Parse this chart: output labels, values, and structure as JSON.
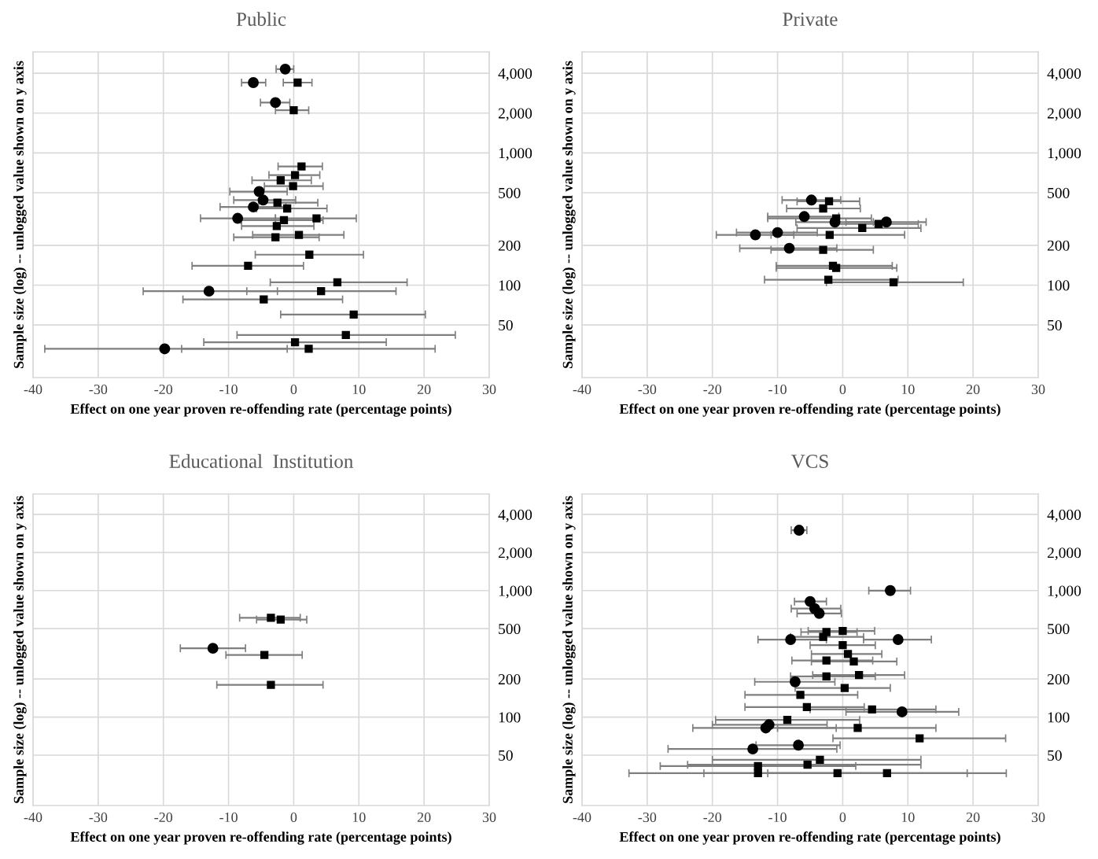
{
  "chart_data": [
    {
      "type": "scatter",
      "title": "Public",
      "xlabel": "Effect on one year proven re-offending rate (percentage points)",
      "ylabel": "Sample size (log) -- unlogged value shown on y axis",
      "log": "y",
      "grid": true,
      "xlim": [
        -40,
        30
      ],
      "xticks": [
        -40,
        -30,
        -20,
        -10,
        0,
        10,
        20,
        30
      ],
      "ylim": [
        20,
        5800
      ],
      "yticks": [
        {
          "value": 50,
          "label": "50"
        },
        {
          "value": 100,
          "label": "100"
        },
        {
          "value": 200,
          "label": "200"
        },
        {
          "value": 500,
          "label": "500"
        },
        {
          "value": 1000,
          "label": "1,000"
        },
        {
          "value": 2000,
          "label": "2,000"
        },
        {
          "value": 4000,
          "label": "4,000"
        }
      ],
      "series": [
        {
          "color": "#000000",
          "marker": "circle",
          "x": [
            -1.3,
            -6.2,
            -2.8,
            -5.3,
            -4.7,
            -6.2,
            -8.6,
            -13,
            -19.8
          ],
          "values": [
            4300,
            3400,
            2400,
            510,
            440,
            390,
            320,
            90,
            33
          ],
          "xerrors": [
            [
              -2.7,
              0
            ],
            [
              -8,
              -4.3
            ],
            [
              -5.1,
              -0.6
            ],
            [
              -9.8,
              -1
            ],
            [
              -9.2,
              0.3
            ],
            [
              -11.3,
              -1.2
            ],
            [
              -14.3,
              -2.8
            ],
            [
              -23.1,
              -2.5
            ],
            [
              -38.2,
              -1
            ]
          ]
        },
        {
          "color": "#000000",
          "marker": "square",
          "x": [
            0.6,
            0,
            1.2,
            0.2,
            -2,
            -0.1,
            -2.5,
            -1,
            -1.5,
            3.5,
            -2.6,
            0.8,
            -2.8,
            2.4,
            -7,
            6.7,
            4.2,
            -4.6,
            9.2,
            8,
            0.2,
            2.3
          ],
          "values": [
            3400,
            2100,
            790,
            680,
            620,
            560,
            420,
            380,
            310,
            320,
            280,
            240,
            230,
            170,
            140,
            105,
            90,
            78,
            60,
            42,
            37,
            33
          ],
          "xerrors": [
            [
              -1.6,
              2.8
            ],
            [
              -2.8,
              2.3
            ],
            [
              -2.4,
              4.4
            ],
            [
              -3.8,
              4
            ],
            [
              -6.4,
              2.7
            ],
            [
              -4.5,
              4.5
            ],
            [
              -5.4,
              3.7
            ],
            [
              -5.7,
              5.1
            ],
            [
              -8.1,
              4.5
            ],
            [
              -2.8,
              9.6
            ],
            [
              -8,
              3.1
            ],
            [
              -6.3,
              7.7
            ],
            [
              -9.2,
              3.9
            ],
            [
              -5.9,
              10.7
            ],
            [
              -15.6,
              1.5
            ],
            [
              -3.6,
              17.4
            ],
            [
              -7.2,
              15.7
            ],
            [
              -17,
              7.5
            ],
            [
              -2,
              20.2
            ],
            [
              -8.7,
              24.8
            ],
            [
              -13.8,
              14.2
            ],
            [
              -17.2,
              21.7
            ]
          ]
        }
      ]
    },
    {
      "type": "scatter",
      "title": "Private",
      "xlabel": "Effect on one year proven re-offending rate (percentage points)",
      "ylabel": "Sample size (log) -- unlogged value shown on y axis",
      "log": "y",
      "grid": true,
      "xlim": [
        -40,
        30
      ],
      "xticks": [
        -40,
        -30,
        -20,
        -10,
        0,
        10,
        20,
        30
      ],
      "ylim": [
        20,
        5800
      ],
      "yticks": [
        {
          "value": 50,
          "label": "50"
        },
        {
          "value": 100,
          "label": "100"
        },
        {
          "value": 200,
          "label": "200"
        },
        {
          "value": 500,
          "label": "500"
        },
        {
          "value": 1000,
          "label": "1,000"
        },
        {
          "value": 2000,
          "label": "2,000"
        },
        {
          "value": 4000,
          "label": "4,000"
        }
      ],
      "series": [
        {
          "color": "#000000",
          "marker": "circle",
          "x": [
            -4.8,
            -5.9,
            -1.2,
            6.7,
            -10,
            -13.4,
            -8.2
          ],
          "values": [
            440,
            330,
            300,
            300,
            250,
            240,
            190
          ],
          "xerrors": [
            [
              -9.3,
              -0.3
            ],
            [
              -11.5,
              -0.6
            ],
            [
              -7.2,
              4.7
            ],
            [
              0.5,
              12.8
            ],
            [
              -16.3,
              -3.9
            ],
            [
              -19.4,
              -7.5
            ],
            [
              -15.8,
              -0.9
            ]
          ]
        },
        {
          "color": "#000000",
          "marker": "square",
          "x": [
            -2.1,
            -3,
            -1,
            5.5,
            3,
            -2,
            -3,
            -1.5,
            -1,
            -2.2,
            7.8
          ],
          "values": [
            430,
            380,
            320,
            290,
            270,
            240,
            185,
            140,
            135,
            110,
            105
          ],
          "xerrors": [
            [
              -7,
              2.6
            ],
            [
              -8.6,
              2.7
            ],
            [
              -11.5,
              4.4
            ],
            [
              -1,
              11.6
            ],
            [
              -7,
              12
            ],
            [
              -11,
              9.5
            ],
            [
              -11,
              4.7
            ],
            [
              -10.2,
              7.6
            ],
            [
              -10.2,
              8.3
            ],
            [
              -12,
              8.5
            ],
            [
              -2.5,
              18.5
            ]
          ]
        }
      ]
    },
    {
      "type": "scatter",
      "title": "Educational  Institution",
      "xlabel": "Effect on one year proven re-offending rate (percentage points)",
      "ylabel": "Sample size (log) -- unlogged value shown on y axis",
      "log": "y",
      "grid": true,
      "xlim": [
        -40,
        30
      ],
      "xticks": [
        -40,
        -30,
        -20,
        -10,
        0,
        10,
        20,
        30
      ],
      "ylim": [
        20,
        5800
      ],
      "yticks": [
        {
          "value": 50,
          "label": "50"
        },
        {
          "value": 100,
          "label": "100"
        },
        {
          "value": 200,
          "label": "200"
        },
        {
          "value": 500,
          "label": "500"
        },
        {
          "value": 1000,
          "label": "1,000"
        },
        {
          "value": 2000,
          "label": "2,000"
        },
        {
          "value": 4000,
          "label": "4,000"
        }
      ],
      "series": [
        {
          "color": "#000000",
          "marker": "circle",
          "x": [
            -12.4
          ],
          "values": [
            350
          ],
          "xerrors": [
            [
              -17.4,
              -7.4
            ]
          ]
        },
        {
          "color": "#000000",
          "marker": "square",
          "x": [
            -3.5,
            -2,
            -4.5,
            -3.5
          ],
          "values": [
            610,
            590,
            310,
            180
          ],
          "xerrors": [
            [
              -8.3,
              1
            ],
            [
              -5.7,
              2
            ],
            [
              -10.4,
              1.3
            ],
            [
              -11.8,
              4.5
            ]
          ]
        }
      ]
    },
    {
      "type": "scatter",
      "title": "VCS",
      "xlabel": "Effect on one year proven re-offending rate (percentage points)",
      "ylabel": "Sample size (log) -- unlogged value shown on y axis",
      "log": "y",
      "grid": true,
      "xlim": [
        -40,
        30
      ],
      "xticks": [
        -40,
        -30,
        -20,
        -10,
        0,
        10,
        20,
        30
      ],
      "ylim": [
        20,
        5800
      ],
      "yticks": [
        {
          "value": 50,
          "label": "50"
        },
        {
          "value": 100,
          "label": "100"
        },
        {
          "value": 200,
          "label": "200"
        },
        {
          "value": 500,
          "label": "500"
        },
        {
          "value": 1000,
          "label": "1,000"
        },
        {
          "value": 2000,
          "label": "2,000"
        },
        {
          "value": 4000,
          "label": "4,000"
        }
      ],
      "series": [
        {
          "color": "#000000",
          "marker": "circle",
          "x": [
            -6.7,
            7.3,
            -5,
            -4.3,
            -3.6,
            -8,
            8.5,
            -7.3,
            9.1,
            -11.3,
            -11.8,
            -6.8,
            -13.8
          ],
          "values": [
            3000,
            1000,
            820,
            720,
            660,
            410,
            410,
            190,
            110,
            87,
            82,
            60,
            56
          ],
          "xerrors": [
            [
              -7.9,
              -5.5
            ],
            [
              4,
              10.4
            ],
            [
              -7.4,
              -2.5
            ],
            [
              -7.9,
              -0.3
            ],
            [
              -7,
              -0.2
            ],
            [
              -13,
              -2.5
            ],
            [
              3.2,
              13.6
            ],
            [
              -13.5,
              -1.2
            ],
            [
              0.5,
              17.8
            ],
            [
              -20,
              -2.4
            ],
            [
              -23,
              -1
            ],
            [
              -13.3,
              -0.4
            ],
            [
              -26.8,
              -0.9
            ]
          ]
        },
        {
          "color": "#000000",
          "marker": "square",
          "x": [
            0,
            -2.5,
            -3,
            0,
            0.8,
            -2.5,
            1.7,
            -2.5,
            2.5,
            0.3,
            -6.5,
            -5.5,
            4.5,
            -8.5,
            2.3,
            11.8,
            -3.5,
            -13,
            -5.4,
            -13,
            -0.8,
            6.8
          ],
          "values": [
            480,
            470,
            430,
            370,
            315,
            280,
            275,
            210,
            215,
            170,
            150,
            120,
            115,
            95,
            82,
            68,
            46,
            41,
            42,
            36,
            36,
            36
          ],
          "xerrors": [
            [
              -5.3,
              4.9
            ],
            [
              -6.4,
              2.2
            ],
            [
              -8,
              3.2
            ],
            [
              -5,
              5
            ],
            [
              -4.8,
              6
            ],
            [
              -7.8,
              4.6
            ],
            [
              -4.8,
              8.3
            ],
            [
              -8,
              5
            ],
            [
              -4.6,
              9.5
            ],
            [
              -7.3,
              7.3
            ],
            [
              -15,
              2.3
            ],
            [
              -15,
              3.3
            ],
            [
              -5,
              14.3
            ],
            [
              -19.5,
              2.6
            ],
            [
              -10,
              14.3
            ],
            [
              -1.5,
              25
            ],
            [
              -20,
              12
            ],
            [
              -28,
              2
            ],
            [
              -23.8,
              12
            ],
            [
              -32.8,
              6.5
            ],
            [
              -21.3,
              19.1
            ],
            [
              -11.5,
              25.1
            ]
          ]
        }
      ]
    }
  ]
}
